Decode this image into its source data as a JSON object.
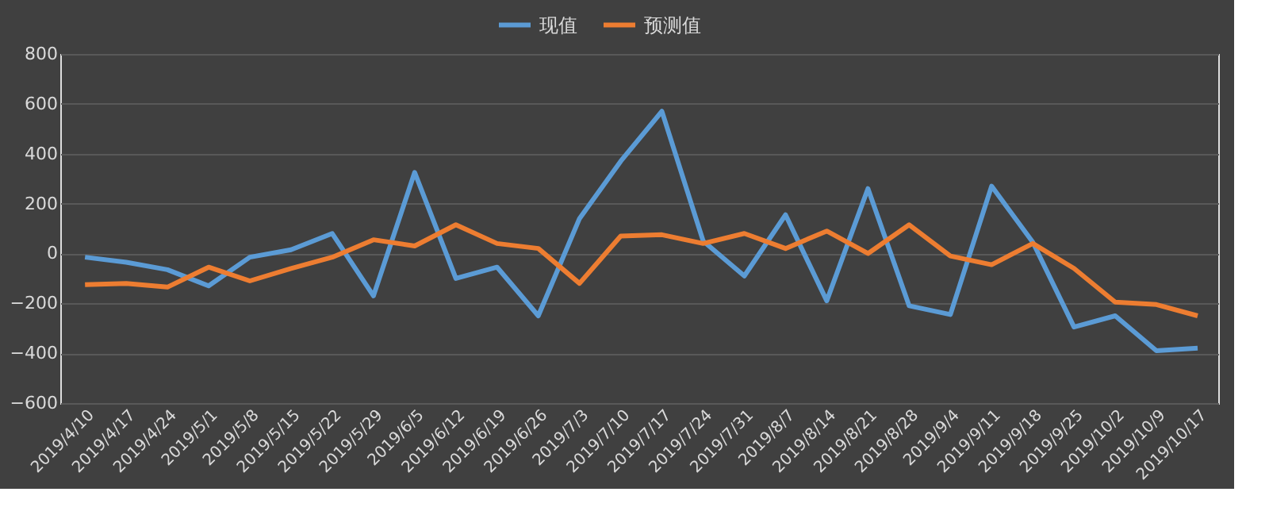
{
  "chart_data": {
    "type": "line",
    "categories": [
      "2019/4/10",
      "2019/4/17",
      "2019/4/24",
      "2019/5/1",
      "2019/5/8",
      "2019/5/15",
      "2019/5/22",
      "2019/5/29",
      "2019/6/5",
      "2019/6/12",
      "2019/6/19",
      "2019/6/26",
      "2019/7/3",
      "2019/7/10",
      "2019/7/17",
      "2019/7/24",
      "2019/7/31",
      "2019/8/7",
      "2019/8/14",
      "2019/8/21",
      "2019/8/28",
      "2019/9/4",
      "2019/9/11",
      "2019/9/18",
      "2019/9/25",
      "2019/10/2",
      "2019/10/9",
      "2019/10/17"
    ],
    "series": [
      {
        "name": "现值",
        "color": "#5b9bd5",
        "values": [
          -15,
          -35,
          -65,
          -130,
          -15,
          15,
          80,
          -170,
          325,
          -100,
          -55,
          -250,
          140,
          370,
          570,
          50,
          -90,
          155,
          -190,
          260,
          -210,
          -245,
          270,
          45,
          -295,
          -250,
          -390,
          -380
        ]
      },
      {
        "name": "预测值",
        "color": "#ed7d31",
        "values": [
          -125,
          -120,
          -135,
          -55,
          -110,
          -60,
          -15,
          55,
          30,
          115,
          40,
          20,
          -120,
          70,
          75,
          40,
          80,
          20,
          90,
          0,
          115,
          -10,
          -45,
          40,
          -60,
          -195,
          -205,
          -250
        ]
      }
    ],
    "ylim": [
      -600,
      800
    ],
    "yticks": [
      -600,
      -400,
      -200,
      0,
      200,
      400,
      600,
      800
    ],
    "grid": "y",
    "legend": "top",
    "marker": "none",
    "line_style": "solid"
  }
}
